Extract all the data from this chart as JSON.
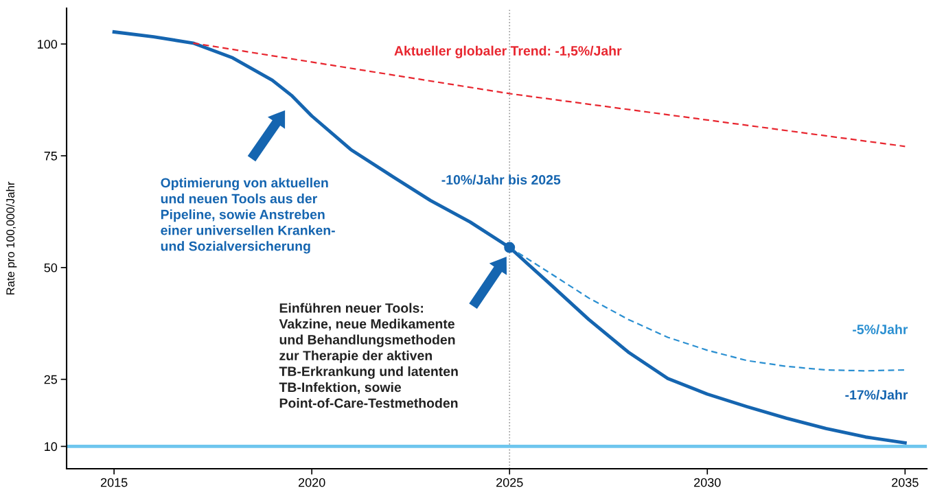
{
  "chart_data": {
    "type": "line",
    "ylabel": "Rate pro 100,000/Jahr",
    "xlim": [
      2013.8,
      2035.55
    ],
    "xticks": [
      2015,
      2020,
      2025,
      2030,
      2035
    ],
    "ylim": [
      5,
      108
    ],
    "yticks": [
      10,
      25,
      50,
      75,
      100
    ],
    "grid": false,
    "marker": "none",
    "series": [
      {
        "color": "#e8262f",
        "line_style": "dashed",
        "x": [
          2017,
          2025,
          2035
        ],
        "values": [
          100.2,
          88.9,
          77.1
        ]
      },
      {
        "color": "#2a8fd1",
        "line_style": "dashed",
        "x": [
          2025,
          2026,
          2027,
          2028,
          2029,
          2030,
          2031,
          2032,
          2033,
          2034,
          2035
        ],
        "values": [
          54.5,
          48.9,
          43.2,
          38.4,
          34.4,
          31.5,
          29.2,
          27.9,
          27.1,
          26.9,
          27.1
        ]
      },
      {
        "color": "#1565b0",
        "line_style": "solid",
        "x": [
          2015,
          2016,
          2017,
          2018,
          2019,
          2019.5,
          2020,
          2021,
          2022,
          2023,
          2024,
          2025,
          2026,
          2027,
          2028,
          2029,
          2030,
          2031,
          2032,
          2033,
          2034,
          2035
        ],
        "values": [
          102.7,
          101.6,
          100.2,
          96.9,
          91.9,
          88.4,
          83.9,
          76.3,
          70.6,
          65,
          60.2,
          54.5,
          46.5,
          38.4,
          31.1,
          25.2,
          21.7,
          18.9,
          16.3,
          14,
          12.1,
          10.8
        ]
      },
      {
        "type": "scatter",
        "marker": "circle",
        "color": "#1565b0",
        "x": [
          2025
        ],
        "values": [
          54.5
        ]
      }
    ],
    "ref_lines": [
      {
        "axis": "x",
        "value": 2025,
        "color": "#999999",
        "line_style": "dotted"
      },
      {
        "axis": "y",
        "value": 10,
        "color": "#6ec6ee",
        "line_style": "solid"
      }
    ],
    "annotations": [
      "Aktueller globaler Trend: -1,5%/Jahr",
      "-10%/Jahr bis 2025",
      "-5%/Jahr",
      "-17%/Jahr",
      "Optimierung von aktuellen\nund neuen Tools aus der\nPipeline, sowie Anstreben\neiner universellen Kranken-\nund Sozialversicherung",
      "Einführen neuer Tools:\nVakzine, neue Medikamente\nund Behandlungsmethoden\nzur Therapie der aktiven\nTB-Erkrankung und latenten\nTB-Infektion, sowie\nPoint-of-Care-Testmethoden"
    ]
  }
}
